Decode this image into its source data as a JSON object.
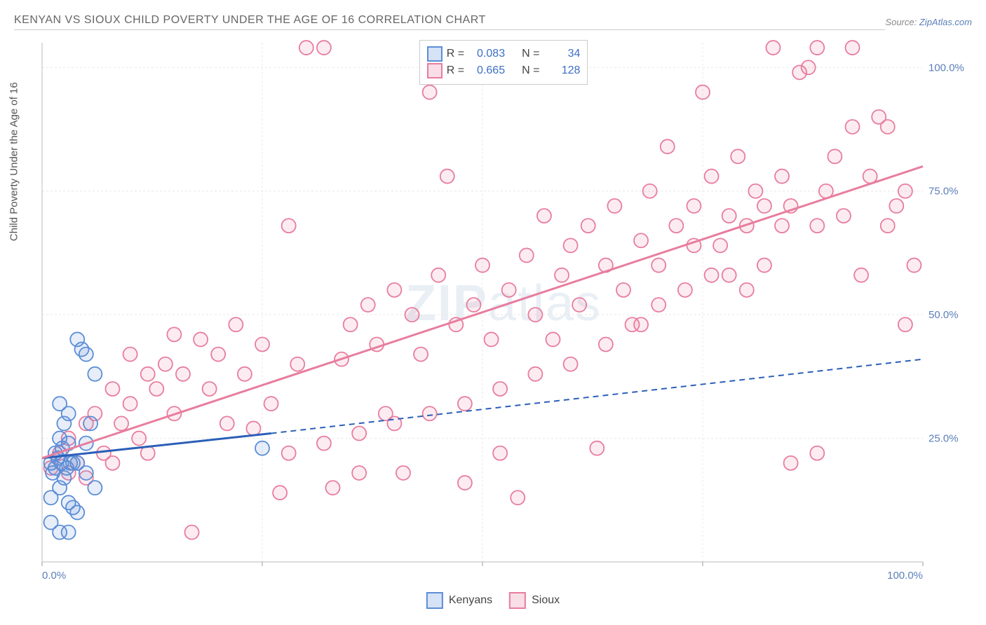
{
  "title": "KENYAN VS SIOUX CHILD POVERTY UNDER THE AGE OF 16 CORRELATION CHART",
  "source_label": "Source:",
  "source_name": "ZipAtlas.com",
  "y_axis_label": "Child Poverty Under the Age of 16",
  "watermark": {
    "part1": "ZIP",
    "part2": "atlas"
  },
  "chart": {
    "type": "scatter",
    "background_color": "#ffffff",
    "grid_color": "#e8e8e8",
    "border_color": "#cccccc",
    "xlim": [
      0,
      100
    ],
    "ylim": [
      0,
      105
    ],
    "xticks": [
      0,
      25,
      50,
      75,
      100
    ],
    "yticks": [
      25,
      50,
      75,
      100
    ],
    "ytick_labels": [
      "25.0%",
      "50.0%",
      "75.0%",
      "100.0%"
    ],
    "x_axis_end_labels": [
      "0.0%",
      "100.0%"
    ],
    "tick_label_color": "#5b7fb8",
    "tick_label_fontsize": 15,
    "marker_radius": 10,
    "marker_fill_opacity": 0.15,
    "marker_stroke_width": 1.8,
    "series": [
      {
        "name": "Kenyans",
        "color": "#5b8dd6",
        "r_value": "0.083",
        "n_value": "34",
        "trend_line": {
          "x1": 0,
          "y1": 21,
          "x2": 26,
          "y2": 26,
          "dashed_extend_x2": 100,
          "dashed_extend_y2": 41
        },
        "line_width": 3,
        "points": [
          [
            1,
            20
          ],
          [
            1.2,
            18
          ],
          [
            1.5,
            22
          ],
          [
            2,
            15
          ],
          [
            2,
            25
          ],
          [
            2.2,
            20
          ],
          [
            2.5,
            28
          ],
          [
            3,
            12
          ],
          [
            3,
            30
          ],
          [
            3.5,
            20
          ],
          [
            4,
            45
          ],
          [
            4.5,
            43
          ],
          [
            1,
            8
          ],
          [
            2,
            6
          ],
          [
            3,
            6
          ],
          [
            4,
            10
          ],
          [
            5,
            18
          ],
          [
            5,
            42
          ],
          [
            6,
            15
          ],
          [
            1,
            13
          ],
          [
            2,
            32
          ],
          [
            2.5,
            17
          ],
          [
            3,
            24
          ],
          [
            3.5,
            11
          ],
          [
            4,
            20
          ],
          [
            5,
            24
          ],
          [
            5.5,
            28
          ],
          [
            6,
            38
          ],
          [
            1.5,
            19
          ],
          [
            1.8,
            21
          ],
          [
            2.3,
            23
          ],
          [
            2.8,
            19
          ],
          [
            25,
            23
          ],
          [
            3.2,
            20
          ]
        ]
      },
      {
        "name": "Sioux",
        "color": "#e87d9e",
        "r_value": "0.665",
        "n_value": "128",
        "trend_line": {
          "x1": 0,
          "y1": 21,
          "x2": 100,
          "y2": 80
        },
        "line_width": 3,
        "points": [
          [
            1,
            19
          ],
          [
            2,
            22
          ],
          [
            3,
            18
          ],
          [
            3,
            25
          ],
          [
            4,
            20
          ],
          [
            5,
            28
          ],
          [
            5,
            17
          ],
          [
            6,
            30
          ],
          [
            7,
            22
          ],
          [
            8,
            35
          ],
          [
            8,
            20
          ],
          [
            9,
            28
          ],
          [
            10,
            32
          ],
          [
            10,
            42
          ],
          [
            11,
            25
          ],
          [
            12,
            38
          ],
          [
            12,
            22
          ],
          [
            13,
            35
          ],
          [
            14,
            40
          ],
          [
            15,
            30
          ],
          [
            15,
            46
          ],
          [
            16,
            38
          ],
          [
            17,
            6
          ],
          [
            18,
            45
          ],
          [
            19,
            35
          ],
          [
            20,
            42
          ],
          [
            21,
            28
          ],
          [
            22,
            48
          ],
          [
            23,
            38
          ],
          [
            24,
            27
          ],
          [
            25,
            44
          ],
          [
            26,
            32
          ],
          [
            27,
            14
          ],
          [
            28,
            68
          ],
          [
            29,
            40
          ],
          [
            30,
            104
          ],
          [
            32,
            104
          ],
          [
            33,
            15
          ],
          [
            34,
            41
          ],
          [
            35,
            48
          ],
          [
            36,
            18
          ],
          [
            37,
            52
          ],
          [
            38,
            44
          ],
          [
            39,
            30
          ],
          [
            40,
            55
          ],
          [
            41,
            18
          ],
          [
            42,
            50
          ],
          [
            43,
            42
          ],
          [
            44,
            95
          ],
          [
            45,
            58
          ],
          [
            46,
            78
          ],
          [
            47,
            48
          ],
          [
            48,
            16
          ],
          [
            49,
            52
          ],
          [
            50,
            60
          ],
          [
            51,
            45
          ],
          [
            52,
            22
          ],
          [
            53,
            55
          ],
          [
            54,
            13
          ],
          [
            55,
            62
          ],
          [
            56,
            50
          ],
          [
            57,
            70
          ],
          [
            58,
            45
          ],
          [
            59,
            58
          ],
          [
            60,
            64
          ],
          [
            61,
            52
          ],
          [
            62,
            68
          ],
          [
            63,
            23
          ],
          [
            64,
            60
          ],
          [
            65,
            72
          ],
          [
            66,
            55
          ],
          [
            67,
            48
          ],
          [
            68,
            65
          ],
          [
            69,
            75
          ],
          [
            70,
            60
          ],
          [
            71,
            84
          ],
          [
            72,
            68
          ],
          [
            73,
            55
          ],
          [
            74,
            72
          ],
          [
            75,
            95
          ],
          [
            76,
            78
          ],
          [
            77,
            64
          ],
          [
            78,
            70
          ],
          [
            79,
            82
          ],
          [
            80,
            68
          ],
          [
            81,
            75
          ],
          [
            82,
            60
          ],
          [
            83,
            104
          ],
          [
            84,
            78
          ],
          [
            85,
            72
          ],
          [
            86,
            99
          ],
          [
            87,
            100
          ],
          [
            88,
            68
          ],
          [
            89,
            75
          ],
          [
            90,
            82
          ],
          [
            91,
            70
          ],
          [
            92,
            88
          ],
          [
            93,
            58
          ],
          [
            94,
            78
          ],
          [
            95,
            90
          ],
          [
            96,
            88
          ],
          [
            97,
            72
          ],
          [
            98,
            48
          ],
          [
            99,
            60
          ],
          [
            88,
            104
          ],
          [
            92,
            104
          ],
          [
            85,
            20
          ],
          [
            88,
            22
          ],
          [
            78,
            58
          ],
          [
            80,
            55
          ],
          [
            82,
            72
          ],
          [
            84,
            68
          ],
          [
            74,
            64
          ],
          [
            76,
            58
          ],
          [
            70,
            52
          ],
          [
            68,
            48
          ],
          [
            64,
            44
          ],
          [
            60,
            40
          ],
          [
            56,
            38
          ],
          [
            52,
            35
          ],
          [
            48,
            32
          ],
          [
            44,
            30
          ],
          [
            40,
            28
          ],
          [
            36,
            26
          ],
          [
            32,
            24
          ],
          [
            28,
            22
          ],
          [
            98,
            75
          ],
          [
            96,
            68
          ]
        ]
      }
    ]
  },
  "stats_box": {
    "r_label": "R =",
    "n_label": "N ="
  },
  "legend": {
    "items": [
      "Kenyans",
      "Sioux"
    ]
  }
}
